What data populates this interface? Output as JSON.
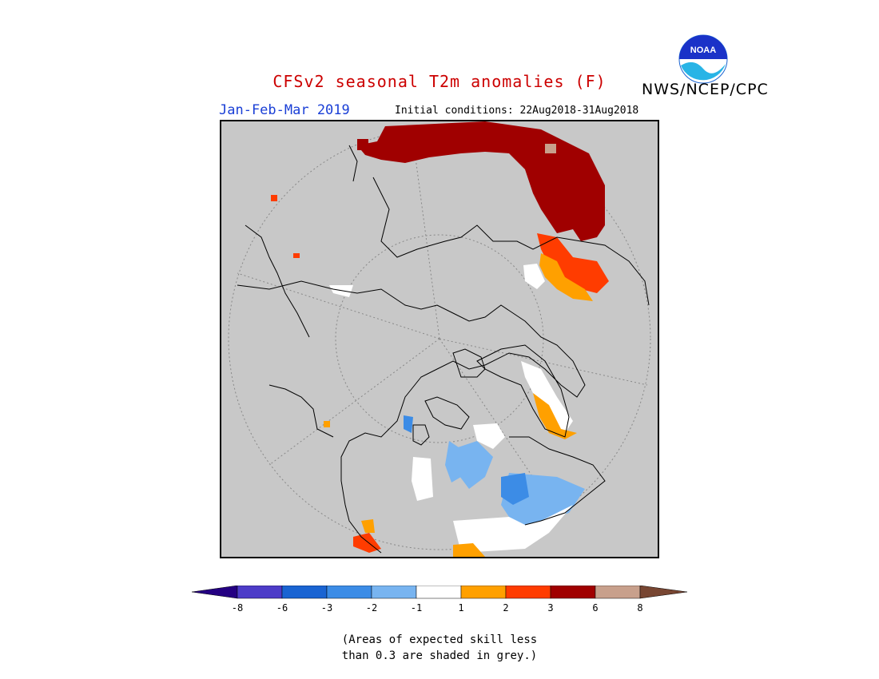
{
  "header": {
    "title": "CFSv2 seasonal T2m anomalies (F)",
    "organization": "NWS/NCEP/CPC",
    "logo_text": "NOAA",
    "season": "Jan-Feb-Mar 2019",
    "initial_conditions": "Initial conditions: 22Aug2018-31Aug2018"
  },
  "colors": {
    "grey": "#c8c8c8",
    "below_m8": "#240082",
    "m8_m6": "#4d3cc8",
    "m6_m3": "#1a64d2",
    "m3_m2": "#3c8ce6",
    "m2_m1": "#78b4f0",
    "m1_1": "#ffffff",
    "1_2": "#ffa000",
    "2_3": "#ff3c00",
    "3_6": "#a00000",
    "6_8": "#c8a08c",
    "above_8": "#784632"
  },
  "legend": {
    "tick_labels": [
      "-8",
      "-6",
      "-3",
      "-2",
      "-1",
      "1",
      "2",
      "3",
      "6",
      "8"
    ]
  },
  "footnote": {
    "line1": "(Areas of expected skill less",
    "line2": "than 0.3 are shaded in grey.)"
  }
}
